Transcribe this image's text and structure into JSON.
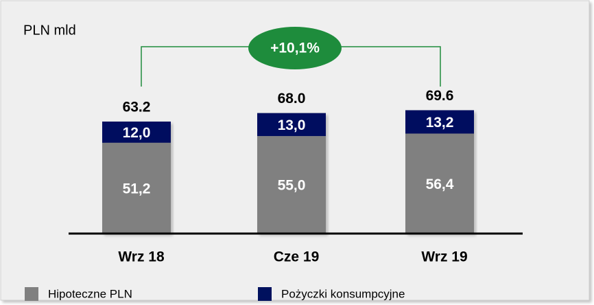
{
  "chart_data": {
    "type": "stacked_bar",
    "unit_label": "PLN mld",
    "annotation": "+10,1%",
    "categories": [
      "Wrz 18",
      "Cze 19",
      "Wrz 19"
    ],
    "series": [
      {
        "name": "Hipoteczne PLN",
        "color": "#808080",
        "values": [
          51.2,
          55.0,
          56.4
        ],
        "value_labels": [
          "51,2",
          "55,0",
          "56,4"
        ]
      },
      {
        "name": "Pożyczki konsumpcyjne",
        "color": "#00115e",
        "values": [
          12.0,
          13.0,
          13.2
        ],
        "value_labels": [
          "12,0",
          "13,0",
          "13,2"
        ]
      }
    ],
    "total_labels": [
      "63.2",
      "68.0",
      "69.6"
    ]
  }
}
